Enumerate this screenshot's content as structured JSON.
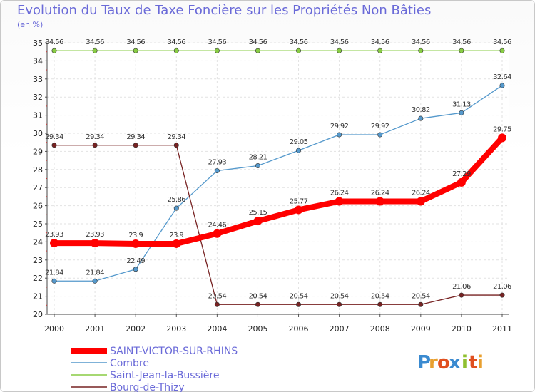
{
  "chart_data": {
    "type": "line",
    "title": "Evolution du Taux de Taxe Foncière sur les Propriétés Non Bâties",
    "subtitle": "(en %)",
    "x": [
      "2000",
      "2001",
      "2002",
      "2003",
      "2004",
      "2005",
      "2006",
      "2007",
      "2008",
      "2009",
      "2010",
      "2011"
    ],
    "ylim": [
      20,
      35
    ],
    "yticks": [
      20,
      21,
      22,
      23,
      24,
      25,
      26,
      27,
      28,
      29,
      30,
      31,
      32,
      33,
      34,
      35
    ],
    "grid": true,
    "legend_position": "bottom-left",
    "series": [
      {
        "name": "SAINT-VICTOR-SUR-RHINS",
        "color": "#ff0000",
        "values": [
          23.93,
          23.93,
          23.9,
          23.9,
          24.46,
          25.15,
          25.77,
          26.24,
          26.24,
          26.24,
          27.29,
          29.75
        ],
        "labels": [
          "23.93",
          "23.93",
          "23.9",
          "23.9",
          "24.46",
          "25.15",
          "25.77",
          "26.24",
          "26.24",
          "26.24",
          "27.29",
          "29.75"
        ]
      },
      {
        "name": "Combre",
        "color": "#5599cc",
        "values": [
          21.84,
          21.84,
          22.49,
          25.86,
          27.93,
          28.21,
          29.05,
          29.92,
          29.92,
          30.82,
          31.13,
          32.64
        ],
        "labels": [
          "21.84",
          "21.84",
          "22.49",
          "25.86",
          "27.93",
          "28.21",
          "29.05",
          "29.92",
          "29.92",
          "30.82",
          "31.13",
          "32.64"
        ]
      },
      {
        "name": "Saint-Jean-la-Bussière",
        "color": "#88cc44",
        "values": [
          34.56,
          34.56,
          34.56,
          34.56,
          34.56,
          34.56,
          34.56,
          34.56,
          34.56,
          34.56,
          34.56,
          34.56
        ],
        "labels": [
          "34.56",
          "34.56",
          "34.56",
          "34.56",
          "34.56",
          "34.56",
          "34.56",
          "34.56",
          "34.56",
          "34.56",
          "34.56",
          "34.56"
        ]
      },
      {
        "name": "Bourg-de-Thizy",
        "color": "#772222",
        "values": [
          29.34,
          29.34,
          29.34,
          29.34,
          20.54,
          20.54,
          20.54,
          20.54,
          20.54,
          20.54,
          21.06,
          21.06
        ],
        "labels": [
          "29.34",
          "29.34",
          "29.34",
          "29.34",
          "20.54",
          "20.54",
          "20.54",
          "20.54",
          "20.54",
          "20.54",
          "21.06",
          "21.06"
        ]
      }
    ]
  },
  "logo": {
    "text": "Proxiti",
    "letters": [
      "P",
      "r",
      "o",
      "x",
      "i",
      "t",
      "i"
    ],
    "colors": [
      "#3a8ad0",
      "#e8a030",
      "#e05020",
      "#3a8ad0",
      "#90c030",
      "#e05020",
      "#e8a030"
    ]
  }
}
